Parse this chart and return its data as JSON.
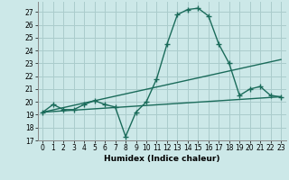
{
  "xlabel": "Humidex (Indice chaleur)",
  "background_color": "#cce8e8",
  "grid_color": "#aacccc",
  "line_color": "#1a6b5a",
  "xlim": [
    -0.5,
    23.5
  ],
  "ylim": [
    17,
    27.8
  ],
  "yticks": [
    17,
    18,
    19,
    20,
    21,
    22,
    23,
    24,
    25,
    26,
    27
  ],
  "xticks": [
    0,
    1,
    2,
    3,
    4,
    5,
    6,
    7,
    8,
    9,
    10,
    11,
    12,
    13,
    14,
    15,
    16,
    17,
    18,
    19,
    20,
    21,
    22,
    23
  ],
  "series1_x": [
    0,
    1,
    2,
    3,
    4,
    5,
    6,
    7,
    8,
    9,
    10,
    11,
    12,
    13,
    14,
    15,
    16,
    17,
    18,
    19,
    20,
    21,
    22,
    23
  ],
  "series1_y": [
    19.2,
    19.8,
    19.4,
    19.4,
    19.8,
    20.1,
    19.8,
    19.6,
    17.3,
    19.2,
    20.0,
    21.8,
    24.5,
    26.8,
    27.2,
    27.3,
    26.7,
    24.5,
    23.0,
    20.5,
    21.0,
    21.2,
    20.5,
    20.4
  ],
  "series2_x": [
    0,
    23
  ],
  "series2_y": [
    19.2,
    23.3
  ],
  "series3_x": [
    0,
    23
  ],
  "series3_y": [
    19.2,
    20.4
  ],
  "marker_size": 4,
  "line_width": 1.0,
  "tick_fontsize": 5.5,
  "xlabel_fontsize": 6.5
}
